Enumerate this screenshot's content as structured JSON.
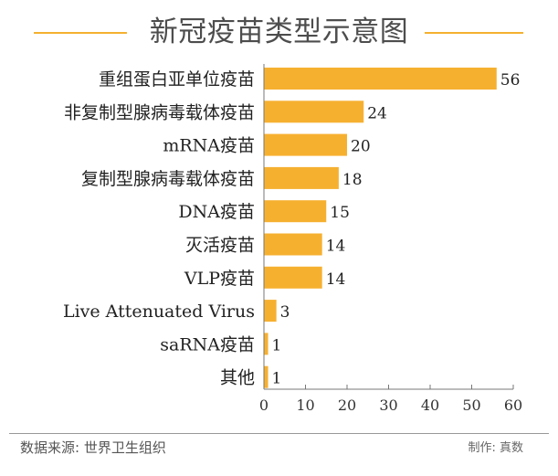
{
  "colors": {
    "bar": "#f6b030",
    "accent_line": "#f4b02f",
    "axis": "#777777"
  },
  "footer": {
    "source": "数据来源: 世界卫生组织",
    "credit": "制作: 真数"
  },
  "chart_data": {
    "type": "bar",
    "orientation": "horizontal",
    "title": "新冠疫苗类型示意图",
    "categories": [
      "重组蛋白亚单位疫苗",
      "非复制型腺病毒载体疫苗",
      "mRNA疫苗",
      "复制型腺病毒载体疫苗",
      "DNA疫苗",
      "灭活疫苗",
      "VLP疫苗",
      "Live Attenuated Virus",
      "saRNA疫苗",
      "其他"
    ],
    "values": [
      56,
      24,
      20,
      18,
      15,
      14,
      14,
      3,
      1,
      1
    ],
    "xlim": [
      0,
      60
    ],
    "xticks": [
      0,
      10,
      20,
      30,
      40,
      50,
      60
    ],
    "grid": false,
    "legend": "none"
  }
}
